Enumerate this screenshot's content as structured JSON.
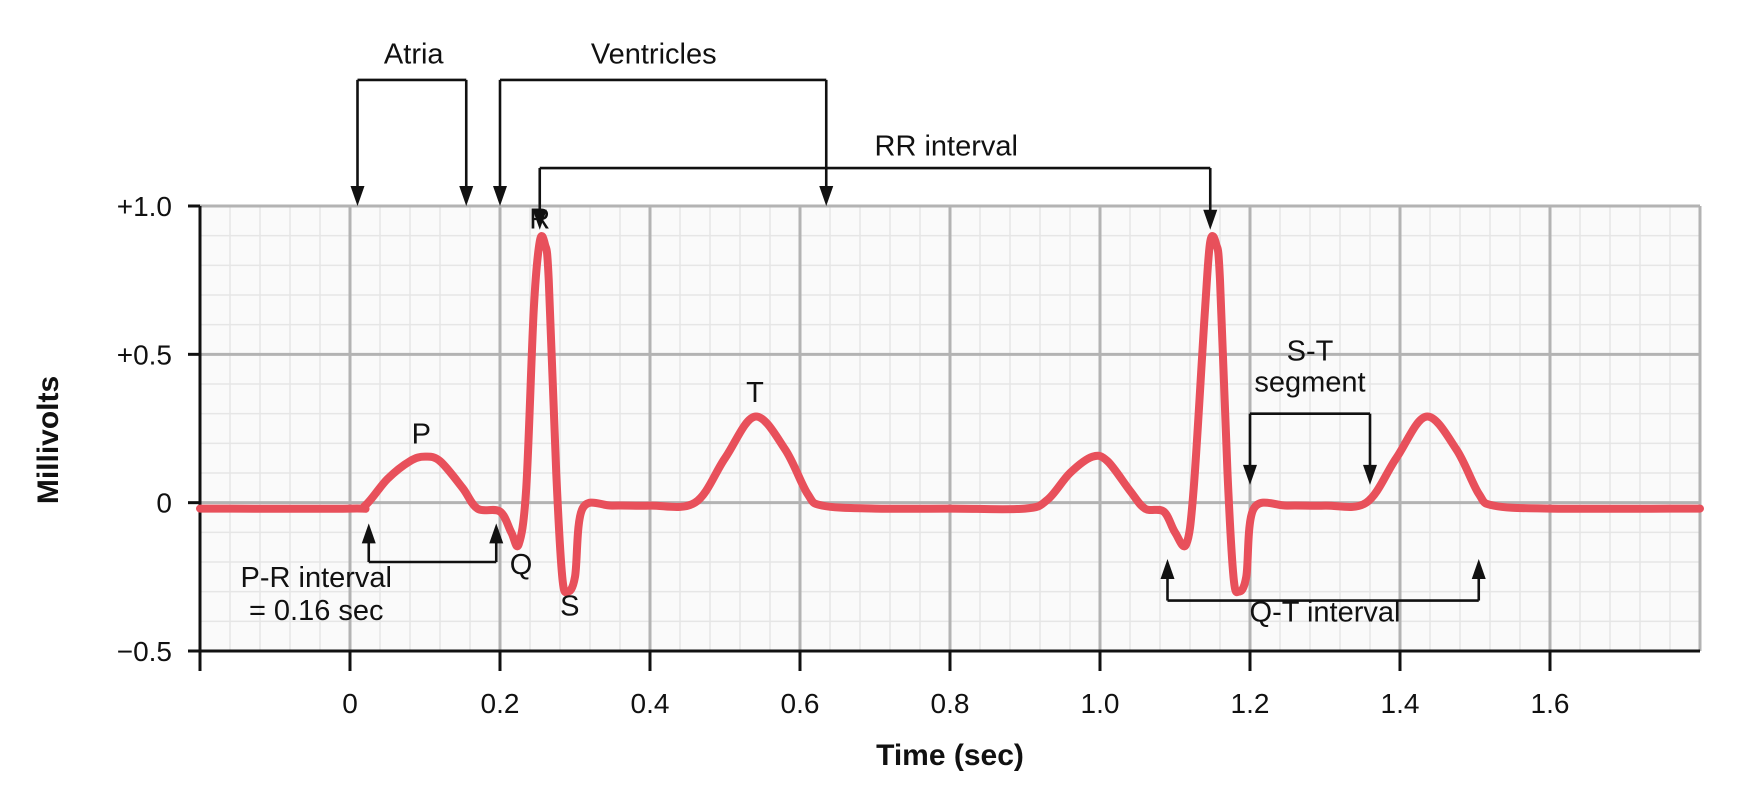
{
  "chart_data": {
    "type": "line",
    "xlabel": "Time (sec)",
    "ylabel": "Millivolts",
    "xlim": [
      -0.2,
      1.8
    ],
    "ylim": [
      -0.5,
      1.0
    ],
    "x_ticks": [
      {
        "value": 0,
        "label": "0"
      },
      {
        "value": 0.2,
        "label": "0.2"
      },
      {
        "value": 0.4,
        "label": "0.4"
      },
      {
        "value": 0.6,
        "label": "0.6"
      },
      {
        "value": 0.8,
        "label": "0.8"
      },
      {
        "value": 1.0,
        "label": "1.0"
      },
      {
        "value": 1.2,
        "label": "1.2"
      },
      {
        "value": 1.4,
        "label": "1.4"
      },
      {
        "value": 1.6,
        "label": "1.6"
      }
    ],
    "y_ticks": [
      {
        "value": 1.0,
        "label": "+1.0"
      },
      {
        "value": 0.5,
        "label": "+0.5"
      },
      {
        "value": 0,
        "label": "0"
      },
      {
        "value": -0.5,
        "label": "−0.5"
      }
    ],
    "grid": true,
    "series_color": "#e8505b",
    "series": [
      {
        "x": [
          -0.2,
          0.0,
          0.02,
          0.05,
          0.08,
          0.1,
          0.12,
          0.15,
          0.17,
          0.2,
          0.215,
          0.225,
          0.235,
          0.245,
          0.253,
          0.26,
          0.265,
          0.275,
          0.283,
          0.29,
          0.3,
          0.31,
          0.35,
          0.4,
          0.46,
          0.5,
          0.54,
          0.58,
          0.61,
          0.63,
          0.7,
          0.8,
          0.9,
          0.93,
          0.96,
          0.99,
          1.01,
          1.04,
          1.06,
          1.085,
          1.1,
          1.115,
          1.125,
          1.14,
          1.147,
          1.155,
          1.16,
          1.17,
          1.178,
          1.185,
          1.195,
          1.205,
          1.25,
          1.3,
          1.355,
          1.395,
          1.435,
          1.475,
          1.505,
          1.525,
          1.6,
          1.8
        ],
        "y": [
          -0.02,
          -0.02,
          -0.01,
          0.08,
          0.14,
          0.155,
          0.14,
          0.05,
          -0.02,
          -0.03,
          -0.1,
          -0.14,
          0.05,
          0.65,
          0.88,
          0.87,
          0.75,
          0.1,
          -0.25,
          -0.3,
          -0.25,
          -0.02,
          -0.01,
          -0.01,
          0.0,
          0.15,
          0.29,
          0.18,
          0.03,
          -0.01,
          -0.02,
          -0.02,
          -0.02,
          0.01,
          0.1,
          0.155,
          0.14,
          0.04,
          -0.02,
          -0.03,
          -0.1,
          -0.14,
          0.05,
          0.65,
          0.88,
          0.87,
          0.75,
          0.1,
          -0.25,
          -0.3,
          -0.25,
          -0.02,
          -0.01,
          -0.01,
          0.0,
          0.15,
          0.29,
          0.18,
          0.03,
          -0.01,
          -0.02,
          -0.02
        ]
      }
    ],
    "wave_labels": [
      {
        "text": "P",
        "x": 0.095,
        "y": 0.2
      },
      {
        "text": "R",
        "x": 0.253,
        "y": 0.925
      },
      {
        "text": "Q",
        "x": 0.228,
        "y": -0.24
      },
      {
        "text": "S",
        "x": 0.293,
        "y": -0.38
      },
      {
        "text": "T",
        "x": 0.54,
        "y": 0.34
      }
    ],
    "annotations": [
      {
        "id": "atria",
        "text": "Atria",
        "kind": "top-bracket",
        "x1": 0.01,
        "x2": 0.155,
        "bar_y": 1.425,
        "arrow_to_y": 1.0,
        "text_x": 0.085,
        "text_y": 1.48
      },
      {
        "id": "ventricles",
        "text": "Ventricles",
        "kind": "top-bracket",
        "x1": 0.2,
        "x2": 0.635,
        "bar_y": 1.425,
        "arrow_to_y": 1.0,
        "text_x": 0.405,
        "text_y": 1.48
      },
      {
        "id": "rr-interval",
        "text": "RR interval",
        "kind": "top-bracket",
        "x1": 0.253,
        "x2": 1.147,
        "bar_y": 1.128,
        "arrow_to_y": 0.92,
        "text_x": 0.795,
        "text_y": 1.17
      },
      {
        "id": "pr-interval",
        "lines": [
          "P-R interval",
          "= 0.16 sec"
        ],
        "kind": "bottom-bracket",
        "x1": 0.025,
        "x2": 0.195,
        "bar_y": -0.2,
        "arrow_to_y": -0.07,
        "text_x": -0.045,
        "text_y": [
          -0.285,
          -0.395
        ]
      },
      {
        "id": "st-segment",
        "lines": [
          "S-T",
          "segment"
        ],
        "kind": "top-bracket",
        "x1": 1.2,
        "x2": 1.36,
        "bar_y": 0.3,
        "arrow_to_y": 0.06,
        "text_x": 1.28,
        "text_y": [
          0.48,
          0.375
        ]
      },
      {
        "id": "qt-interval",
        "text": "Q-T interval",
        "kind": "bottom-bracket",
        "x1": 1.09,
        "x2": 1.505,
        "bar_y": -0.33,
        "arrow_to_y": -0.19,
        "text_x": 1.3,
        "text_y": -0.4
      }
    ]
  }
}
